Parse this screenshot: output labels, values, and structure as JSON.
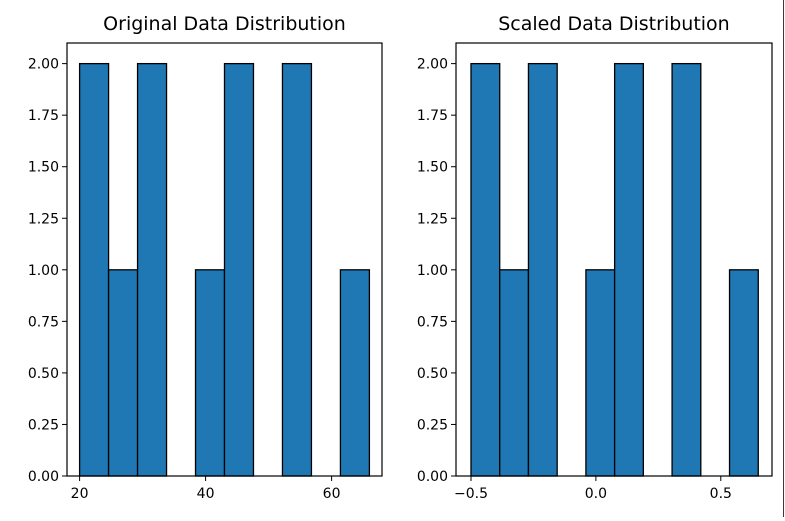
{
  "chart_data": [
    {
      "type": "bar",
      "title": "Original Data Distribution",
      "xlabel": "",
      "ylabel": "",
      "bin_edges": [
        20.0,
        24.6,
        29.2,
        33.8,
        38.4,
        43.0,
        47.6,
        52.2,
        56.8,
        61.4,
        66.0
      ],
      "values": [
        2,
        1,
        2,
        0,
        1,
        2,
        0,
        2,
        0,
        1
      ],
      "xlim": [
        18,
        68
      ],
      "ylim": [
        0,
        2.1
      ],
      "xticks": [
        20,
        40,
        60
      ],
      "xtick_labels": [
        "20",
        "40",
        "60"
      ],
      "yticks": [
        0,
        0.25,
        0.5,
        0.75,
        1.0,
        1.25,
        1.5,
        1.75,
        2.0
      ],
      "ytick_labels": [
        "0.00",
        "0.25",
        "0.50",
        "0.75",
        "1.00",
        "1.25",
        "1.50",
        "1.75",
        "2.00"
      ],
      "bar_color": "#1f77b4",
      "edge_color": "#000000",
      "grid": false
    },
    {
      "type": "bar",
      "title": "Scaled Data Distribution",
      "xlabel": "",
      "ylabel": "",
      "bin_edges": [
        -0.5,
        -0.385,
        -0.27,
        -0.155,
        -0.04,
        0.075,
        0.19,
        0.305,
        0.42,
        0.535,
        0.65
      ],
      "values": [
        2,
        1,
        2,
        0,
        1,
        2,
        0,
        2,
        0,
        1
      ],
      "xlim": [
        -0.56,
        0.705
      ],
      "ylim": [
        0,
        2.1
      ],
      "xticks": [
        -0.5,
        0.0,
        0.5
      ],
      "xtick_labels": [
        "−0.5",
        "0.0",
        "0.5"
      ],
      "yticks": [
        0,
        0.25,
        0.5,
        0.75,
        1.0,
        1.25,
        1.5,
        1.75,
        2.0
      ],
      "ytick_labels": [
        "0.00",
        "0.25",
        "0.50",
        "0.75",
        "1.00",
        "1.25",
        "1.50",
        "1.75",
        "2.00"
      ],
      "bar_color": "#1f77b4",
      "edge_color": "#000000",
      "grid": false
    }
  ]
}
